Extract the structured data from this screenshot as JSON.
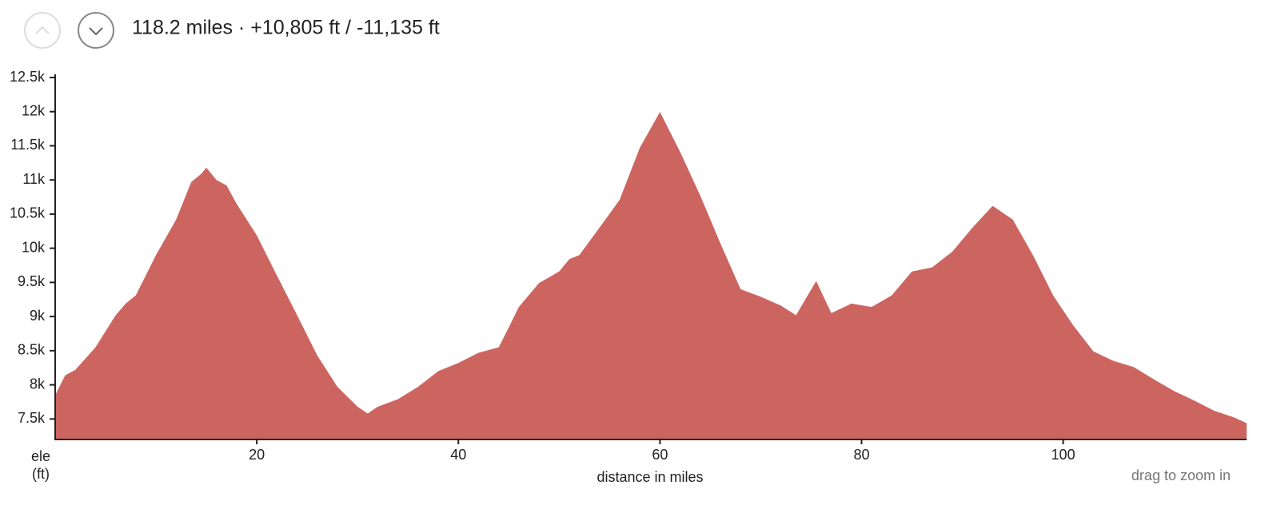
{
  "header": {
    "summary": "118.2 miles · +10,805 ft / -11,135 ft"
  },
  "hint": "drag to zoom in",
  "chart_data": {
    "type": "area",
    "xlabel": "distance in miles",
    "ylabel_lines": [
      "ele",
      "(ft)"
    ],
    "color": "#cc6560",
    "x": [
      0,
      1,
      2,
      4,
      6,
      7,
      8,
      10,
      12,
      13.5,
      14.5,
      15,
      16,
      17,
      18,
      20,
      22,
      24,
      26,
      28,
      30,
      31,
      32,
      34,
      36,
      38,
      40,
      42,
      44,
      45,
      46,
      48,
      50,
      51,
      52,
      54,
      56,
      58,
      60,
      62,
      64,
      66,
      68,
      70,
      72,
      73.5,
      75.5,
      77,
      79,
      81,
      83,
      85,
      87,
      89,
      91,
      93,
      95,
      97,
      99,
      101,
      103,
      105,
      107,
      109,
      111,
      113,
      115,
      117,
      118.2
    ],
    "values": [
      7850,
      8140,
      8220,
      8550,
      9020,
      9190,
      9310,
      9900,
      10420,
      10970,
      11090,
      11180,
      11000,
      10920,
      10650,
      10190,
      9600,
      9020,
      8430,
      7970,
      7680,
      7580,
      7680,
      7790,
      7970,
      8200,
      8320,
      8470,
      8550,
      8840,
      9140,
      9490,
      9660,
      9840,
      9900,
      10300,
      10710,
      11470,
      11995,
      11410,
      10770,
      10070,
      9400,
      9290,
      9160,
      9020,
      9520,
      9050,
      9190,
      9140,
      9310,
      9660,
      9720,
      9950,
      10300,
      10620,
      10420,
      9900,
      9310,
      8870,
      8490,
      8350,
      8260,
      8080,
      7910,
      7770,
      7620,
      7520,
      7440
    ],
    "xlim": [
      0,
      118.2
    ],
    "xticks": [
      20,
      40,
      60,
      80,
      100
    ],
    "ylim": [
      7200,
      12500
    ],
    "yticks": [
      {
        "value": 7500,
        "label": "7.5k"
      },
      {
        "value": 8000,
        "label": "8k"
      },
      {
        "value": 8500,
        "label": "8.5k"
      },
      {
        "value": 9000,
        "label": "9k"
      },
      {
        "value": 9500,
        "label": "9.5k"
      },
      {
        "value": 10000,
        "label": "10k"
      },
      {
        "value": 10500,
        "label": "10.5k"
      },
      {
        "value": 11000,
        "label": "11k"
      },
      {
        "value": 11500,
        "label": "11.5k"
      },
      {
        "value": 12000,
        "label": "12k"
      },
      {
        "value": 12500,
        "label": "12.5k"
      }
    ]
  }
}
